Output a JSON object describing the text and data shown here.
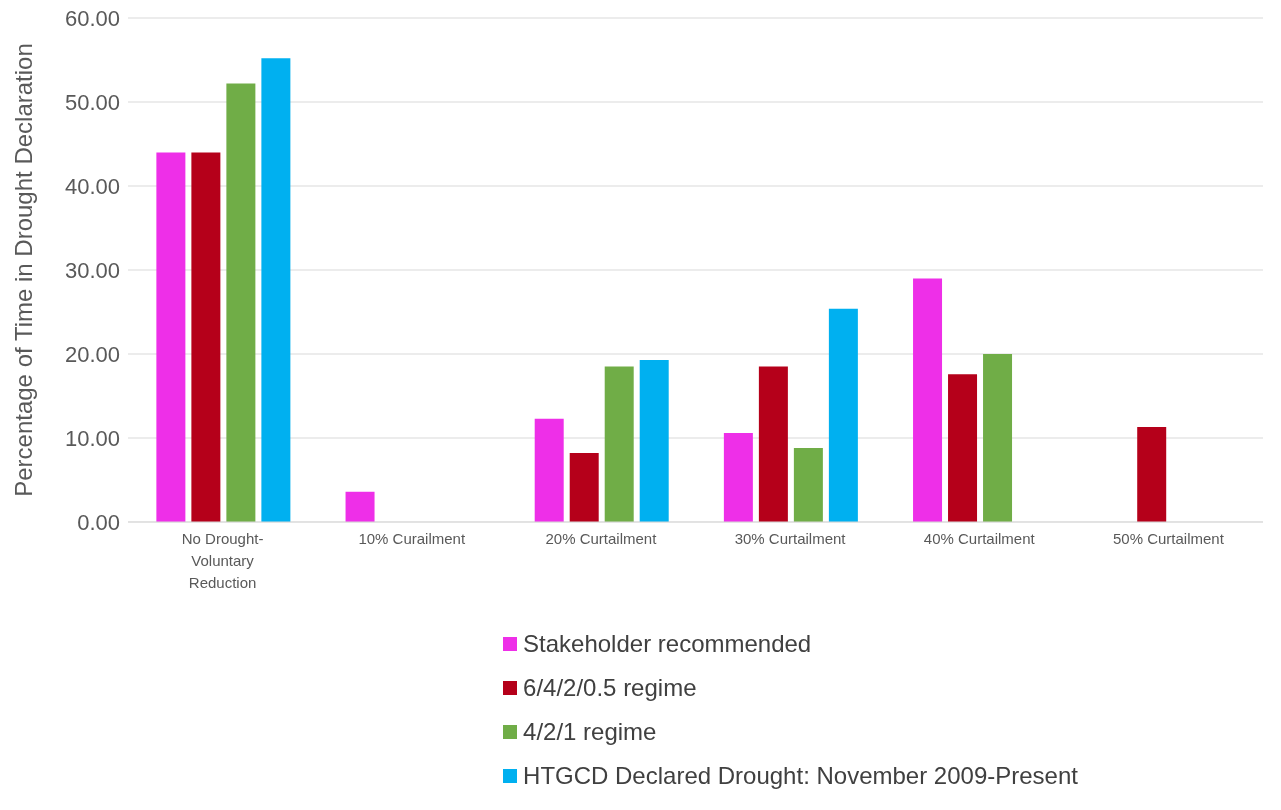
{
  "chart_data": {
    "type": "bar",
    "ylabel": "Percentage of Time in Drought Declaration",
    "categories": [
      "No Drought-Voluntary Reduction",
      "10% Curailment",
      "20% Curtailment",
      "30% Curtailment",
      "40% Curtailment",
      "50% Curtailment"
    ],
    "series": [
      {
        "name": "Stakeholder recommended",
        "color": "#ee2fe8",
        "values": [
          44.0,
          3.6,
          12.3,
          10.6,
          29.0,
          null
        ]
      },
      {
        "name": "6/4/2/0.5 regime",
        "color": "#b5001a",
        "values": [
          44.0,
          null,
          8.2,
          18.5,
          17.6,
          11.3
        ]
      },
      {
        "name": "4/2/1 regime",
        "color": "#70ad47",
        "values": [
          52.2,
          null,
          18.5,
          8.8,
          20.0,
          null
        ]
      },
      {
        "name": "HTGCD Declared Drought: November 2009-Present",
        "color": "#00b0f0",
        "values": [
          55.2,
          null,
          19.3,
          25.4,
          null,
          null
        ]
      }
    ],
    "ylim": [
      0,
      60
    ],
    "yticks": [
      {
        "value": 0,
        "label": "0.00"
      },
      {
        "value": 10,
        "label": "10.00"
      },
      {
        "value": 20,
        "label": "20.00"
      },
      {
        "value": 30,
        "label": "30.00"
      },
      {
        "value": 40,
        "label": "40.00"
      },
      {
        "value": 50,
        "label": "50.00"
      },
      {
        "value": 60,
        "label": "60.00"
      }
    ],
    "grid": "y",
    "legend": "bottom"
  }
}
